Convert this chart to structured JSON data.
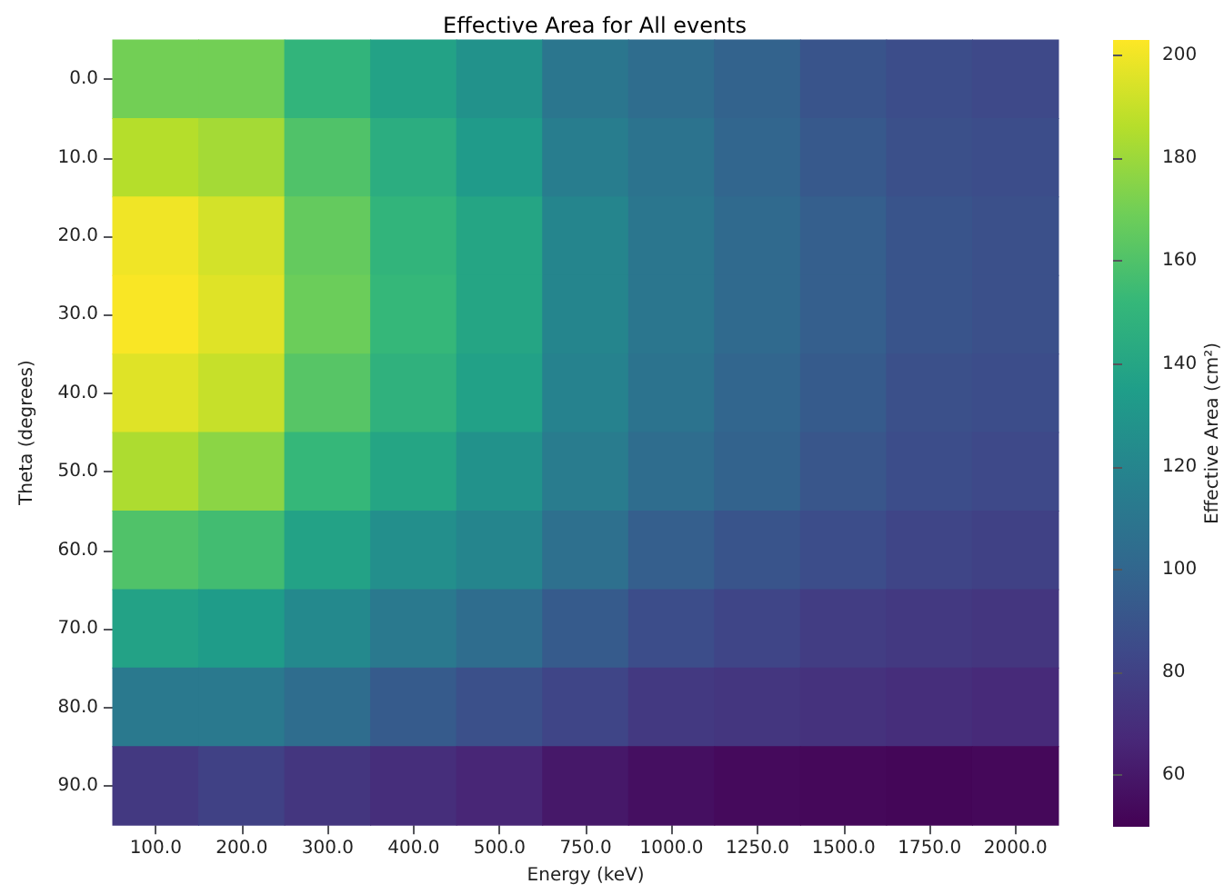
{
  "chart_data": {
    "type": "heatmap",
    "title": "Effective Area for All events",
    "xlabel": "Energy (keV)",
    "ylabel": "Theta (degrees)",
    "clabel": "Effective Area (cm²)",
    "categories": [
      "100.0",
      "200.0",
      "300.0",
      "400.0",
      "500.0",
      "750.0",
      "1000.0",
      "1250.0",
      "1500.0",
      "1750.0",
      "2000.0"
    ],
    "y_categories": [
      "0.0",
      "10.0",
      "20.0",
      "30.0",
      "40.0",
      "50.0",
      "60.0",
      "70.0",
      "80.0",
      "90.0"
    ],
    "cells": [
      [
        170,
        170,
        150,
        138,
        128,
        110,
        104,
        98,
        90,
        86,
        84
      ],
      [
        186,
        182,
        160,
        145,
        133,
        115,
        108,
        100,
        93,
        88,
        86
      ],
      [
        200,
        193,
        166,
        150,
        140,
        120,
        110,
        102,
        96,
        90,
        88
      ],
      [
        202,
        196,
        168,
        152,
        140,
        120,
        110,
        102,
        96,
        90,
        88
      ],
      [
        196,
        190,
        162,
        148,
        137,
        118,
        108,
        100,
        94,
        88,
        86
      ],
      [
        184,
        176,
        152,
        140,
        128,
        114,
        104,
        98,
        91,
        86,
        84
      ],
      [
        160,
        156,
        138,
        126,
        120,
        106,
        96,
        90,
        86,
        82,
        80
      ],
      [
        138,
        134,
        122,
        112,
        104,
        94,
        86,
        82,
        78,
        76,
        74
      ],
      [
        112,
        112,
        104,
        94,
        88,
        82,
        76,
        74,
        72,
        70,
        68
      ],
      [
        76,
        80,
        74,
        70,
        66,
        60,
        56,
        54,
        53,
        52,
        53
      ]
    ],
    "clim": [
      50,
      203
    ],
    "cticks": [
      60,
      80,
      100,
      120,
      140,
      160,
      180,
      200
    ]
  }
}
